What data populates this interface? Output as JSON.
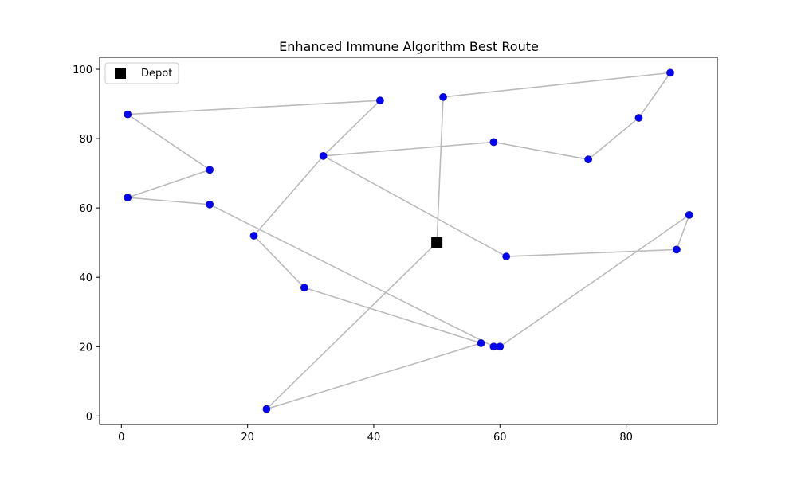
{
  "chart_data": {
    "type": "scatter",
    "title": "Enhanced Immune Algorithm Best Route",
    "xlabel": "",
    "ylabel": "",
    "xlim": [
      -3.45,
      94.45
    ],
    "ylim": [
      -2.45,
      103.45
    ],
    "xticks": [
      0,
      20,
      40,
      60,
      80
    ],
    "yticks": [
      0,
      20,
      40,
      60,
      80,
      100
    ],
    "grid": false,
    "legend": {
      "position": "top-left",
      "entries": [
        "Depot"
      ]
    },
    "depot": {
      "name": "Depot",
      "x": 50,
      "y": 50,
      "color": "#000000",
      "marker": "square"
    },
    "customers": {
      "color": "#0000ff",
      "points": [
        {
          "x": 51,
          "y": 92
        },
        {
          "x": 87,
          "y": 99
        },
        {
          "x": 82,
          "y": 86
        },
        {
          "x": 74,
          "y": 74
        },
        {
          "x": 59,
          "y": 79
        },
        {
          "x": 32,
          "y": 75
        },
        {
          "x": 41,
          "y": 91
        },
        {
          "x": 1,
          "y": 87
        },
        {
          "x": 14,
          "y": 71
        },
        {
          "x": 1,
          "y": 63
        },
        {
          "x": 14,
          "y": 61
        },
        {
          "x": 59,
          "y": 20
        },
        {
          "x": 60,
          "y": 20
        },
        {
          "x": 90,
          "y": 58
        },
        {
          "x": 88,
          "y": 48
        },
        {
          "x": 61,
          "y": 46
        },
        {
          "x": 21,
          "y": 52
        },
        {
          "x": 29,
          "y": 37
        },
        {
          "x": 57,
          "y": 21
        },
        {
          "x": 23,
          "y": 2
        }
      ]
    },
    "route": {
      "color": "#bbbbbb",
      "path": [
        [
          50,
          50
        ],
        [
          51,
          92
        ],
        [
          87,
          99
        ],
        [
          82,
          86
        ],
        [
          74,
          74
        ],
        [
          59,
          79
        ],
        [
          32,
          75
        ],
        [
          61,
          46
        ],
        [
          88,
          48
        ],
        [
          90,
          58
        ],
        [
          60,
          20
        ],
        [
          59,
          20
        ],
        [
          14,
          61
        ],
        [
          1,
          63
        ],
        [
          14,
          71
        ],
        [
          1,
          87
        ],
        [
          41,
          91
        ],
        [
          32,
          75
        ],
        [
          21,
          52
        ],
        [
          29,
          37
        ],
        [
          57,
          21
        ],
        [
          23,
          2
        ],
        [
          50,
          50
        ]
      ]
    }
  }
}
